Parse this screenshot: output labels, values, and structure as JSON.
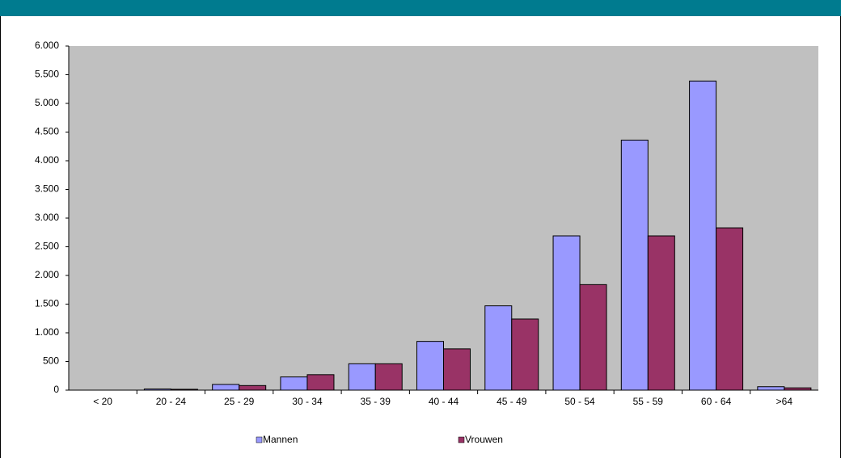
{
  "chart_data": {
    "type": "bar",
    "categories": [
      "< 20",
      "20 - 24",
      "25 - 29",
      "30 - 34",
      "35 - 39",
      "40 - 44",
      "45 - 49",
      "50 - 54",
      "55 - 59",
      "60 - 64",
      ">64"
    ],
    "series": [
      {
        "name": "Mannen",
        "color": "#9999ff",
        "values": [
          0,
          20,
          100,
          230,
          460,
          850,
          1470,
          2690,
          4360,
          5390,
          60
        ]
      },
      {
        "name": "Vrouwen",
        "color": "#993366",
        "values": [
          0,
          15,
          80,
          270,
          460,
          720,
          1240,
          1840,
          2690,
          2830,
          40
        ]
      }
    ],
    "ylim": [
      0,
      6000
    ],
    "yticks": [
      0,
      {
        "value": 500,
        "label": "500"
      },
      {
        "value": 1000,
        "label": "1.000"
      },
      {
        "value": 1500,
        "label": "1.500"
      },
      {
        "value": 2000,
        "label": "2.000"
      },
      {
        "value": 2500,
        "label": "2.500"
      },
      {
        "value": 3000,
        "label": "3.000"
      },
      {
        "value": 3500,
        "label": "3.500"
      },
      {
        "value": 4000,
        "label": "4.000"
      },
      {
        "value": 4500,
        "label": "4.500"
      },
      {
        "value": 5000,
        "label": "5.000"
      },
      {
        "value": 5500,
        "label": "5.500"
      },
      {
        "value": 6000,
        "label": "6.000"
      }
    ],
    "grid": false,
    "legend": "bottom"
  }
}
